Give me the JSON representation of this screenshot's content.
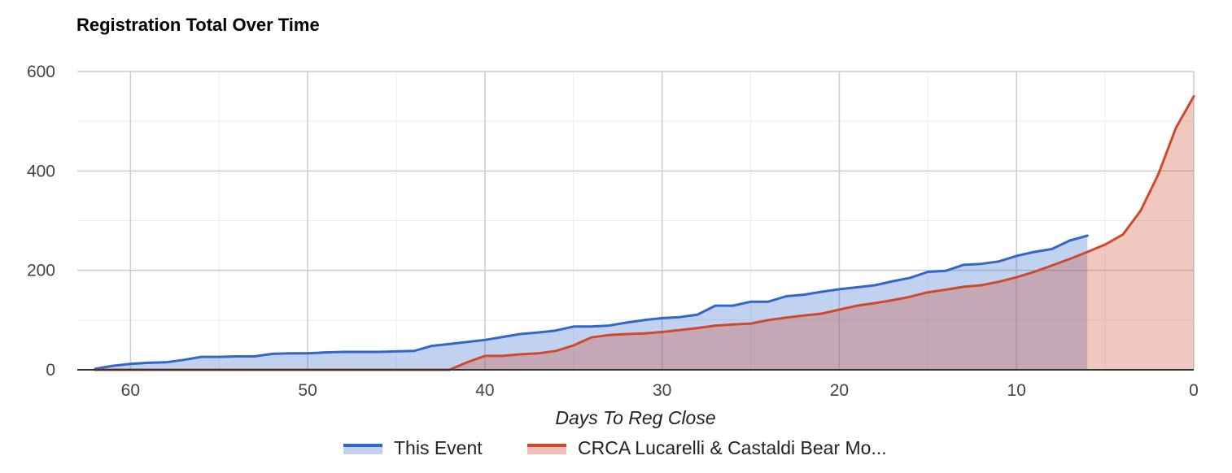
{
  "chart_data": {
    "type": "area",
    "title": "Registration Total Over Time",
    "xlabel": "Days To Reg Close",
    "ylabel": "",
    "x_reversed": true,
    "xlim": [
      63,
      0
    ],
    "ylim": [
      0,
      600
    ],
    "x_ticks": [
      60,
      50,
      40,
      30,
      20,
      10,
      0
    ],
    "y_ticks": [
      0,
      200,
      400,
      600
    ],
    "grid": true,
    "legend_position": "bottom",
    "series": [
      {
        "name": "This Event",
        "color": "#3366cc",
        "fill": "#c3d0ec",
        "points": [
          [
            62,
            2
          ],
          [
            61,
            8
          ],
          [
            60,
            12
          ],
          [
            59,
            14
          ],
          [
            58,
            15
          ],
          [
            57,
            20
          ],
          [
            56,
            26
          ],
          [
            55,
            26
          ],
          [
            54,
            27
          ],
          [
            53,
            27
          ],
          [
            52,
            32
          ],
          [
            51,
            33
          ],
          [
            50,
            33
          ],
          [
            49,
            35
          ],
          [
            48,
            36
          ],
          [
            47,
            36
          ],
          [
            46,
            36
          ],
          [
            45,
            37
          ],
          [
            44,
            38
          ],
          [
            43,
            48
          ],
          [
            42,
            52
          ],
          [
            41,
            56
          ],
          [
            40,
            60
          ],
          [
            39,
            66
          ],
          [
            38,
            72
          ],
          [
            37,
            75
          ],
          [
            36,
            79
          ],
          [
            35,
            87
          ],
          [
            34,
            87
          ],
          [
            33,
            89
          ],
          [
            32,
            95
          ],
          [
            31,
            100
          ],
          [
            30,
            104
          ],
          [
            29,
            106
          ],
          [
            28,
            111
          ],
          [
            27,
            129
          ],
          [
            26,
            129
          ],
          [
            25,
            137
          ],
          [
            24,
            137
          ],
          [
            23,
            148
          ],
          [
            22,
            151
          ],
          [
            21,
            157
          ],
          [
            20,
            162
          ],
          [
            19,
            166
          ],
          [
            18,
            170
          ],
          [
            17,
            178
          ],
          [
            16,
            185
          ],
          [
            15,
            197
          ],
          [
            14,
            199
          ],
          [
            13,
            211
          ],
          [
            12,
            213
          ],
          [
            11,
            218
          ],
          [
            10,
            229
          ],
          [
            9,
            237
          ],
          [
            8,
            243
          ],
          [
            7,
            260
          ],
          [
            6,
            270
          ]
        ]
      },
      {
        "name": "CRCA Lucarelli & Castaldi Bear Mo...",
        "color": "#cf4a2d",
        "fill": "#eec0b8",
        "points": [
          [
            62,
            0
          ],
          [
            61,
            0
          ],
          [
            60,
            0
          ],
          [
            59,
            0
          ],
          [
            58,
            0
          ],
          [
            57,
            0
          ],
          [
            56,
            0
          ],
          [
            55,
            0
          ],
          [
            54,
            0
          ],
          [
            53,
            0
          ],
          [
            52,
            0
          ],
          [
            51,
            0
          ],
          [
            50,
            0
          ],
          [
            49,
            0
          ],
          [
            48,
            0
          ],
          [
            47,
            0
          ],
          [
            46,
            0
          ],
          [
            45,
            0
          ],
          [
            44,
            0
          ],
          [
            43,
            0
          ],
          [
            42,
            0
          ],
          [
            41,
            15
          ],
          [
            40,
            28
          ],
          [
            39,
            28
          ],
          [
            38,
            31
          ],
          [
            37,
            33
          ],
          [
            36,
            38
          ],
          [
            35,
            49
          ],
          [
            34,
            65
          ],
          [
            33,
            70
          ],
          [
            32,
            72
          ],
          [
            31,
            73
          ],
          [
            30,
            76
          ],
          [
            29,
            80
          ],
          [
            28,
            84
          ],
          [
            27,
            89
          ],
          [
            26,
            91
          ],
          [
            25,
            93
          ],
          [
            24,
            100
          ],
          [
            23,
            105
          ],
          [
            22,
            109
          ],
          [
            21,
            113
          ],
          [
            20,
            121
          ],
          [
            19,
            129
          ],
          [
            18,
            134
          ],
          [
            17,
            140
          ],
          [
            16,
            147
          ],
          [
            15,
            156
          ],
          [
            14,
            161
          ],
          [
            13,
            167
          ],
          [
            12,
            170
          ],
          [
            11,
            177
          ],
          [
            10,
            186
          ],
          [
            9,
            197
          ],
          [
            8,
            210
          ],
          [
            7,
            223
          ],
          [
            6,
            237
          ],
          [
            5,
            252
          ],
          [
            4,
            272
          ],
          [
            3,
            320
          ],
          [
            2,
            393
          ],
          [
            1,
            487
          ],
          [
            0,
            550
          ]
        ]
      }
    ]
  }
}
